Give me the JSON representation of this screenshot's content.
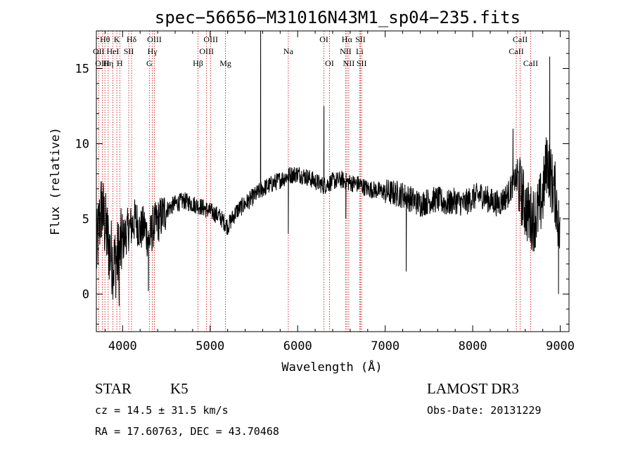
{
  "chart_data": {
    "type": "line",
    "title": "spec−56656−M31016N43M1_sp04−235.fits",
    "xlabel": "Wavelength (Å)",
    "ylabel": "Flux (relative)",
    "xlim": [
      3700,
      9100
    ],
    "ylim": [
      -2.5,
      17.5
    ],
    "xticks": [
      4000,
      5000,
      6000,
      7000,
      8000,
      9000
    ],
    "yticks": [
      0,
      5,
      10,
      15
    ],
    "colors": {
      "spectrum": "#000000",
      "lines": "#cc0000",
      "axes": "#000000"
    },
    "spectral_lines": [
      {
        "label": "Hθ",
        "wavelength": 3798,
        "row": 0
      },
      {
        "label": "OII",
        "wavelength": 3727,
        "row": 1
      },
      {
        "label": "OIII",
        "wavelength": 3769,
        "row": 2
      },
      {
        "label": "K",
        "wavelength": 3934,
        "row": 0
      },
      {
        "label": "HeI",
        "wavelength": 3889,
        "row": 1
      },
      {
        "label": "Hη",
        "wavelength": 3835,
        "row": 2
      },
      {
        "label": "SII",
        "wavelength": 4070,
        "row": 1
      },
      {
        "label": "H",
        "wavelength": 3968,
        "row": 2
      },
      {
        "label": "Hδ",
        "wavelength": 4102,
        "row": 0
      },
      {
        "label": "OIII",
        "wavelength": 4363,
        "row": 0
      },
      {
        "label": "Hγ",
        "wavelength": 4340,
        "row": 1
      },
      {
        "label": "G",
        "wavelength": 4305,
        "row": 2
      },
      {
        "label": "OIII",
        "wavelength": 5007,
        "row": 0
      },
      {
        "label": "OIII",
        "wavelength": 4959,
        "row": 1
      },
      {
        "label": "Hβ",
        "wavelength": 4861,
        "row": 2
      },
      {
        "label": "Mg",
        "wavelength": 5175,
        "row": 2
      },
      {
        "label": "Na",
        "wavelength": 5893,
        "row": 1
      },
      {
        "label": "OI",
        "wavelength": 6300,
        "row": 0
      },
      {
        "label": "OI",
        "wavelength": 6364,
        "row": 2
      },
      {
        "label": "Hα",
        "wavelength": 6563,
        "row": 0
      },
      {
        "label": "SII",
        "wavelength": 6717,
        "row": 0
      },
      {
        "label": "NII",
        "wavelength": 6548,
        "row": 1
      },
      {
        "label": "Li",
        "wavelength": 6708,
        "row": 1
      },
      {
        "label": "NII",
        "wavelength": 6584,
        "row": 2
      },
      {
        "label": "SII",
        "wavelength": 6731,
        "row": 2
      },
      {
        "label": "CaII",
        "wavelength": 8542,
        "row": 0
      },
      {
        "label": "CaII",
        "wavelength": 8498,
        "row": 1
      },
      {
        "label": "CaII",
        "wavelength": 8662,
        "row": 2
      }
    ],
    "spectrum_anchors": {
      "wavelength": [
        3700,
        3730,
        3760,
        3800,
        3850,
        3900,
        3950,
        4000,
        4050,
        4100,
        4150,
        4200,
        4250,
        4300,
        4350,
        4400,
        4450,
        4500,
        4600,
        4700,
        4800,
        4900,
        5000,
        5100,
        5200,
        5300,
        5400,
        5500,
        5600,
        5700,
        5800,
        5900,
        6000,
        6100,
        6200,
        6300,
        6400,
        6500,
        6600,
        6700,
        6800,
        6900,
        7000,
        7100,
        7200,
        7300,
        7400,
        7500,
        7600,
        7700,
        7800,
        7900,
        8000,
        8100,
        8200,
        8300,
        8400,
        8450,
        8500,
        8550,
        8600,
        8650,
        8700,
        8750,
        8800,
        8850,
        8900,
        8950,
        9000
      ],
      "flux": [
        2.5,
        4.5,
        5.8,
        4.5,
        3.0,
        2.0,
        2.5,
        3.5,
        4.2,
        4.5,
        5.0,
        4.2,
        4.5,
        3.5,
        4.5,
        4.8,
        5.2,
        5.6,
        6.0,
        6.2,
        6.0,
        5.8,
        5.5,
        5.2,
        4.5,
        5.5,
        6.0,
        6.5,
        7.0,
        7.3,
        7.6,
        7.9,
        8.0,
        7.8,
        7.5,
        7.2,
        7.5,
        7.6,
        7.4,
        7.3,
        7.0,
        6.9,
        6.8,
        6.7,
        6.6,
        6.3,
        6.0,
        6.2,
        6.3,
        6.0,
        6.2,
        6.0,
        6.4,
        6.6,
        6.2,
        6.0,
        6.6,
        7.2,
        7.8,
        6.8,
        5.8,
        5.2,
        5.0,
        5.5,
        6.5,
        9.0,
        7.5,
        6.5,
        3.5
      ]
    },
    "spectrum_features": [
      {
        "wavelength": 5577,
        "flux": 17.5
      },
      {
        "wavelength": 6300,
        "flux": 12.5
      },
      {
        "wavelength": 5893,
        "flux": 4.0
      },
      {
        "wavelength": 7240,
        "flux": 1.5
      },
      {
        "wavelength": 8880,
        "flux": 15.8
      },
      {
        "wavelength": 8980,
        "flux": 0.0
      },
      {
        "wavelength": 3960,
        "flux": -0.8
      },
      {
        "wavelength": 4295,
        "flux": 0.2
      },
      {
        "wavelength": 6550,
        "flux": 5.0
      },
      {
        "wavelength": 8460,
        "flux": 11.0
      }
    ]
  },
  "info": {
    "object_class": "STAR",
    "subclass": "K5",
    "survey": "LAMOST DR3",
    "cz": "cz = 14.5 ± 31.5 km/s",
    "obs_date": "Obs-Date: 20131229",
    "coords": "RA =  17.60763, DEC =  43.70468"
  }
}
